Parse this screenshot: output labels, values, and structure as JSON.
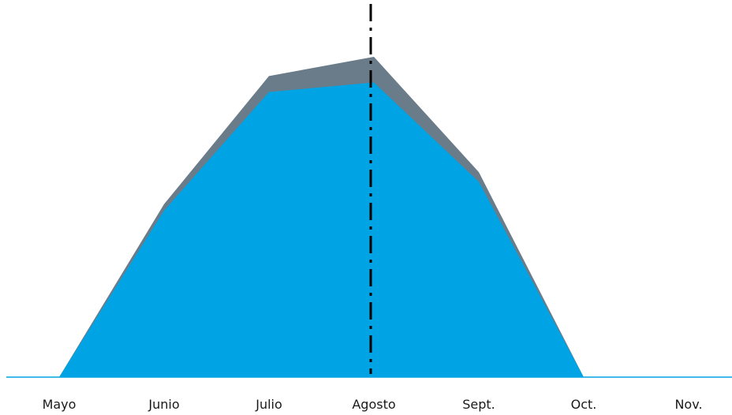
{
  "chart_data": {
    "type": "area",
    "title": "",
    "xlabel": "",
    "ylabel": "",
    "categories": [
      "Mayo",
      "Junio",
      "Julio",
      "Agosto",
      "Sept.",
      "Oct.",
      "Nov."
    ],
    "ylim": [
      0,
      100
    ],
    "series": [
      {
        "values": [
          0,
          54,
          94,
          100,
          64,
          0,
          0
        ],
        "color": "#6a7b89"
      },
      {
        "values": [
          0,
          52,
          89,
          92,
          61,
          0,
          0
        ],
        "color": "#00a4e4"
      }
    ],
    "marker_line": {
      "category": "Agosto",
      "color": "#000000",
      "style": "dash-dot"
    },
    "baseline_color": "#00a4e4",
    "grid": false,
    "legend": "none"
  }
}
